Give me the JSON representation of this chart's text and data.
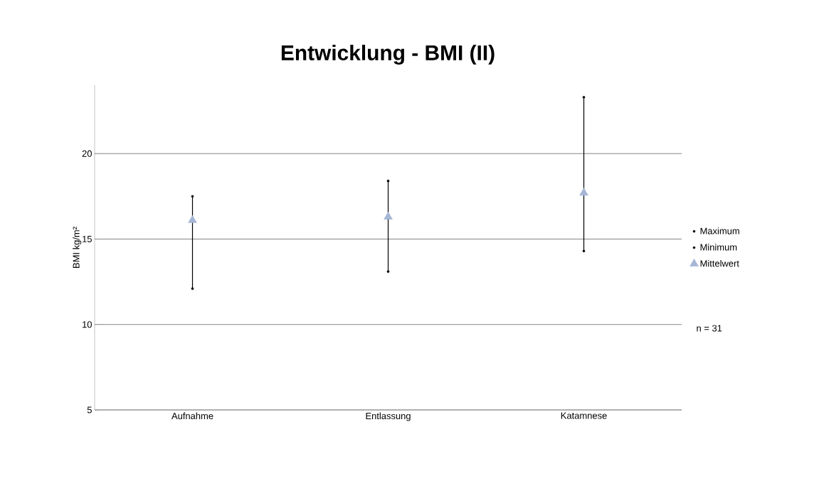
{
  "chart_data": {
    "type": "scatter",
    "title": "Entwicklung  - BMI (II)",
    "ylabel": "BMI kg/m²",
    "categories": [
      "Aufnahme",
      "Entlassung",
      "Katamnese"
    ],
    "series": [
      {
        "name": "Maximum",
        "color": "#000000",
        "marker": "circle",
        "values": [
          17.5,
          18.4,
          23.3
        ]
      },
      {
        "name": "Minimum",
        "color": "#000000",
        "marker": "circle",
        "values": [
          12.1,
          13.1,
          14.3
        ]
      },
      {
        "name": "Mittelwert",
        "color": "#a5b6d6",
        "marker": "triangle",
        "values": [
          16.1,
          16.3,
          17.7
        ]
      }
    ],
    "ylim": [
      5,
      24
    ],
    "yticks": [
      5,
      10,
      15,
      20
    ],
    "grid": "y",
    "legend": "right",
    "annotations": [
      "n = 31"
    ]
  }
}
